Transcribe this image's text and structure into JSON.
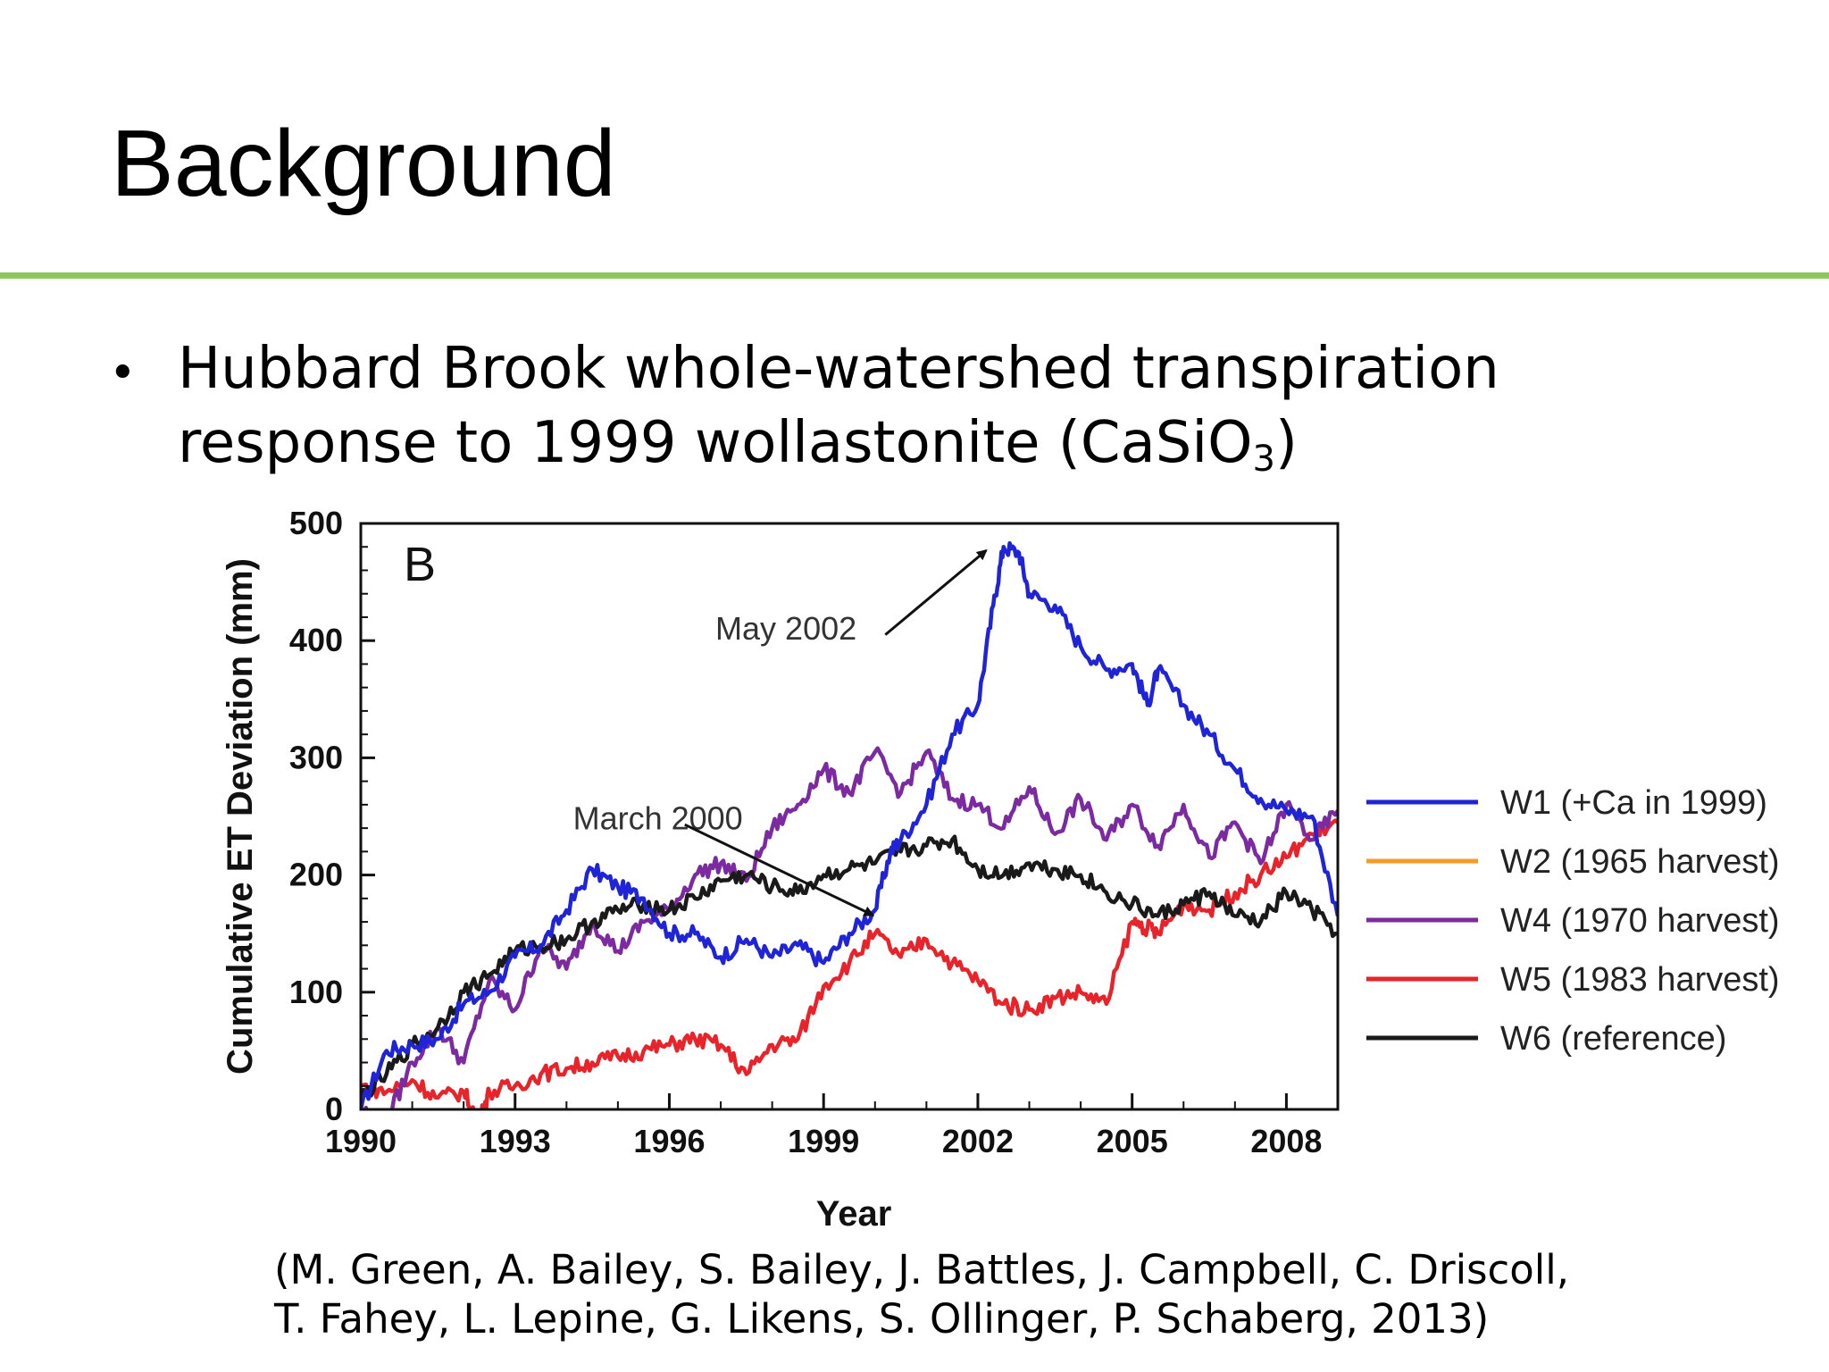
{
  "slide": {
    "title": "Background",
    "accent_color": "#8dc95a",
    "bullet": "Hubbard Brook whole-watershed transpiration response to 1999 wollastonite (CaSiO",
    "bullet_sub": "3",
    "bullet_end": ")",
    "citation_line1": "(M. Green, A. Bailey, S. Bailey, J. Battles, J. Campbell, C. Driscoll,",
    "citation_line2": "T. Fahey, L. Lepine, G. Likens, S. Ollinger, P. Schaberg, 2013)"
  },
  "chart_data": {
    "type": "line",
    "panel_label": "B",
    "xlabel": "Year",
    "ylabel": "Cumulative ET Deviation (mm)",
    "xlim": [
      1990,
      2009
    ],
    "ylim": [
      0,
      500
    ],
    "xticks": [
      1990,
      1993,
      1996,
      1999,
      2002,
      2005,
      2008
    ],
    "yticks": [
      0,
      100,
      200,
      300,
      400,
      500
    ],
    "grid": false,
    "legend_position": "right",
    "annotations": [
      {
        "text": "May 2002",
        "label_x": 1997.0,
        "label_y": 410,
        "point_x": 2002.3,
        "point_y": 480
      },
      {
        "text": "March 2000",
        "label_x": 1994.3,
        "label_y": 248,
        "point_x": 2000.1,
        "point_y": 168
      }
    ],
    "series": [
      {
        "name": "W1 (+Ca in 1999)",
        "color": "#1f24d6",
        "x": [
          1990,
          1990.5,
          1991,
          1991.5,
          1992,
          1992.5,
          1993,
          1993.5,
          1994,
          1994.5,
          1995,
          1995.5,
          1996,
          1996.5,
          1997,
          1997.5,
          1998,
          1998.5,
          1999,
          1999.5,
          2000,
          2000.3,
          2000.5,
          2001,
          2001.5,
          2002,
          2002.3,
          2002.5,
          2002.8,
          2003,
          2003.5,
          2004,
          2004.5,
          2005,
          2005.3,
          2005.5,
          2006,
          2006.5,
          2007,
          2007.5,
          2008,
          2008.5,
          2009
        ],
        "y": [
          0,
          50,
          55,
          60,
          90,
          100,
          130,
          140,
          170,
          205,
          190,
          180,
          150,
          150,
          130,
          145,
          130,
          140,
          125,
          150,
          170,
          220,
          230,
          260,
          320,
          345,
          430,
          480,
          475,
          440,
          430,
          395,
          375,
          380,
          345,
          375,
          345,
          320,
          290,
          265,
          255,
          250,
          165
        ]
      },
      {
        "name": "W2 (1965 harvest)",
        "color": "#f59b26",
        "x": [],
        "y": []
      },
      {
        "name": "W4 (1970 harvest)",
        "color": "#7b2aa0",
        "x": [
          1990,
          1990.5,
          1991,
          1991.5,
          1992,
          1992.5,
          1993,
          1993.5,
          1994,
          1994.5,
          1995,
          1995.5,
          1996,
          1996.5,
          1997,
          1997.5,
          1998,
          1998.5,
          1999,
          1999.5,
          2000,
          2000.5,
          2001,
          2001.5,
          2002,
          2002.5,
          2003,
          2003.5,
          2004,
          2004.5,
          2005,
          2005.5,
          2006,
          2006.5,
          2007,
          2007.5,
          2008,
          2008.5,
          2009
        ],
        "y": [
          0,
          -10,
          40,
          70,
          40,
          110,
          85,
          140,
          120,
          160,
          135,
          160,
          170,
          200,
          210,
          195,
          240,
          260,
          290,
          270,
          305,
          270,
          305,
          265,
          260,
          240,
          275,
          235,
          265,
          230,
          260,
          225,
          260,
          215,
          245,
          210,
          260,
          230,
          255
        ]
      },
      {
        "name": "W5 (1983 harvest)",
        "color": "#e8232a",
        "x": [
          1990,
          1990.5,
          1991,
          1991.5,
          1992,
          1992.3,
          1992.5,
          1993,
          1993.5,
          1994,
          1994.5,
          1995,
          1995.5,
          1996,
          1996.5,
          1997,
          1997.5,
          1998,
          1998.5,
          1999,
          1999.5,
          2000,
          2000.5,
          2001,
          2001.5,
          2002,
          2002.5,
          2003,
          2003.5,
          2004,
          2004.5,
          2005,
          2005.3,
          2005.5,
          2006,
          2006.5,
          2007,
          2007.5,
          2008,
          2008.5,
          2009
        ],
        "y": [
          20,
          15,
          25,
          10,
          15,
          -10,
          15,
          20,
          30,
          35,
          40,
          45,
          50,
          55,
          60,
          55,
          30,
          55,
          60,
          105,
          125,
          150,
          130,
          145,
          125,
          110,
          90,
          85,
          95,
          100,
          90,
          160,
          155,
          150,
          175,
          170,
          185,
          200,
          215,
          235,
          245
        ]
      },
      {
        "name": "W6 (reference)",
        "color": "#1a1a1a",
        "x": [
          1990,
          1990.5,
          1991,
          1991.5,
          1992,
          1992.5,
          1993,
          1993.5,
          1994,
          1994.5,
          1995,
          1995.5,
          1996,
          1996.5,
          1997,
          1997.5,
          1998,
          1998.5,
          1999,
          1999.5,
          2000,
          2000.5,
          2001,
          2001.5,
          2002,
          2002.5,
          2003,
          2003.5,
          2004,
          2004.5,
          2005,
          2005.5,
          2006,
          2006.5,
          2007,
          2007.5,
          2008,
          2008.5,
          2009
        ],
        "y": [
          10,
          30,
          55,
          70,
          100,
          115,
          135,
          140,
          145,
          160,
          170,
          175,
          170,
          180,
          195,
          200,
          190,
          185,
          200,
          205,
          210,
          220,
          225,
          230,
          205,
          200,
          210,
          205,
          200,
          185,
          175,
          165,
          175,
          185,
          165,
          160,
          185,
          170,
          150
        ]
      }
    ]
  }
}
